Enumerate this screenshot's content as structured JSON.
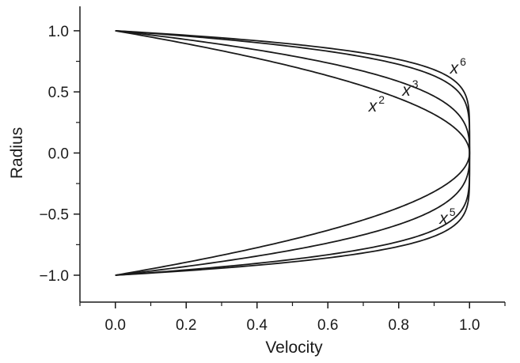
{
  "chart_data": {
    "type": "line",
    "xlabel": "Velocity",
    "ylabel": "Radius",
    "xlim": [
      -0.1,
      1.1
    ],
    "ylim": [
      -1.22,
      1.2
    ],
    "x_ticks": [
      0.0,
      0.2,
      0.4,
      0.6,
      0.8,
      1.0
    ],
    "x_tick_labels": [
      "0.0",
      "0.2",
      "0.4",
      "0.6",
      "0.8",
      "1.0"
    ],
    "x_minor_step": 0.1,
    "y_ticks": [
      1.0,
      0.5,
      0.0,
      -0.5,
      -1.0
    ],
    "y_tick_labels": [
      "1.0",
      "0.5",
      "0.0",
      "−0.5",
      "−1.0"
    ],
    "y_minor_step": 0.25,
    "grid": false,
    "line_color": "#1a1a1a",
    "series": [
      {
        "exponent": 2,
        "values_formula": "velocity = 1 - radius^2"
      },
      {
        "exponent": 3,
        "values_formula": "velocity = 1 - |radius|^3"
      },
      {
        "exponent": 5,
        "values_formula": "velocity = 1 - |radius|^5"
      },
      {
        "exponent": 6,
        "values_formula": "velocity = 1 - radius^6"
      }
    ],
    "annotations": [
      {
        "base": "x",
        "power": "2",
        "x": 0.715,
        "y": 0.34
      },
      {
        "base": "x",
        "power": "3",
        "x": 0.81,
        "y": 0.47
      },
      {
        "base": "x",
        "power": "6",
        "x": 0.945,
        "y": 0.65
      },
      {
        "base": "x",
        "power": "5",
        "x": 0.915,
        "y": -0.58
      }
    ]
  }
}
